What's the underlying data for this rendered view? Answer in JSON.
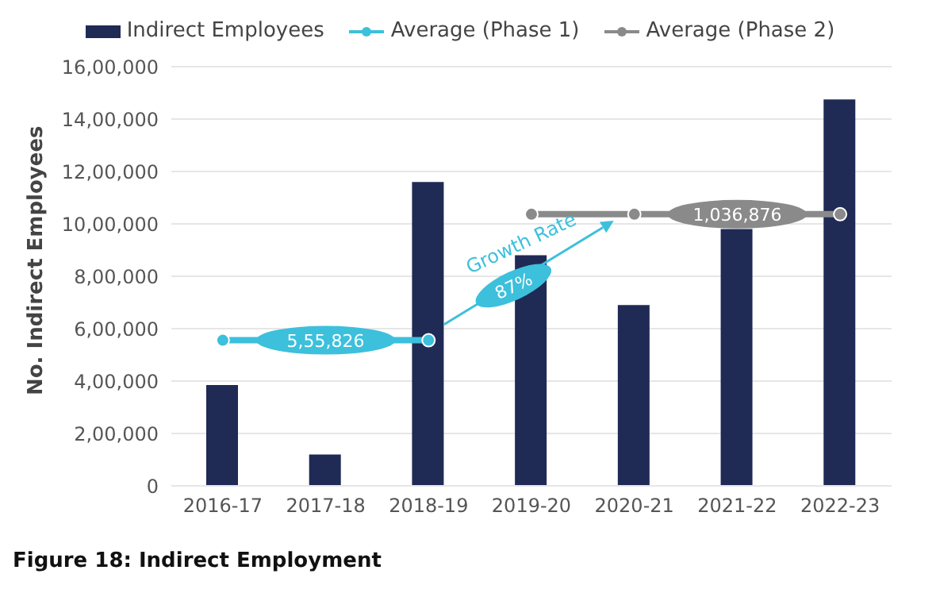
{
  "chart_data": {
    "type": "bar",
    "title": "Figure 18: Indirect Employment",
    "ylabel": "No. Indirect Employees",
    "categories": [
      "2016-17",
      "2017-18",
      "2018-19",
      "2019-20",
      "2020-21",
      "2021-22",
      "2022-23"
    ],
    "series": [
      {
        "name": "Indirect Employees",
        "color": "#1f2a55",
        "values": [
          385000,
          120000,
          1160000,
          880000,
          690000,
          980000,
          1475000
        ]
      },
      {
        "name": "Average (Phase 1)",
        "type": "line",
        "color": "#3cc0dc",
        "values": [
          555826,
          555826,
          555826,
          null,
          null,
          null,
          null
        ],
        "value_labels": [
          null,
          "5,55,826",
          null,
          null,
          null,
          null,
          null
        ]
      },
      {
        "name": "Average (Phase 2)",
        "type": "line",
        "color": "#8a8a8a",
        "values": [
          null,
          null,
          null,
          1036876,
          1036876,
          1036876,
          1036876
        ],
        "value_labels": [
          null,
          null,
          null,
          null,
          null,
          "1,036,876",
          null
        ]
      }
    ],
    "annotations": [
      "Growth Rate",
      "87%"
    ],
    "ylim": [
      0,
      1600000
    ],
    "yticks": [
      {
        "value": 0,
        "label": "0"
      },
      {
        "value": 200000,
        "label": "2,00,000"
      },
      {
        "value": 400000,
        "label": "4,00,000"
      },
      {
        "value": 600000,
        "label": "6,00,000"
      },
      {
        "value": 800000,
        "label": "8,00,000"
      },
      {
        "value": 1000000,
        "label": "10,00,000"
      },
      {
        "value": 1200000,
        "label": "12,00,000"
      },
      {
        "value": 1400000,
        "label": "14,00,000"
      },
      {
        "value": 1600000,
        "label": "16,00,000"
      }
    ],
    "grid": "y",
    "legend": "top",
    "marker": "circle"
  }
}
